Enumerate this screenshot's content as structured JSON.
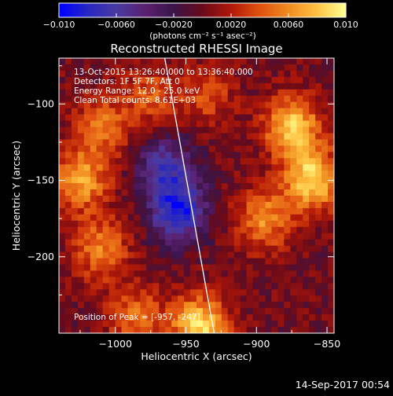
{
  "chart_data": {
    "type": "heatmap",
    "title": "Reconstructed RHESSI Image",
    "xlabel": "Heliocentric X (arcsec)",
    "ylabel": "Heliocentric Y (arcsec)",
    "xlim": [
      -1040,
      -845
    ],
    "ylim": [
      -250,
      -70
    ],
    "x_ticks": [
      -1000,
      -950,
      -900,
      -850
    ],
    "x_tick_labels": [
      "−1000",
      "−950",
      "−900",
      "−850"
    ],
    "y_ticks": [
      -100,
      -150,
      -200
    ],
    "y_tick_labels": [
      "−100",
      "−150",
      "−200"
    ],
    "colorbar": {
      "range": [
        -0.01,
        0.01
      ],
      "ticks": [
        -0.01,
        -0.006,
        -0.002,
        0.002,
        0.006,
        0.01
      ],
      "tick_labels": [
        "−0.010",
        "−0.0060",
        "−0.0020",
        "0.0020",
        "0.0060",
        "0.010"
      ],
      "unit_label": "(photons cm⁻² s⁻¹ asec⁻²)"
    },
    "colors": [
      "#0000ff",
      "#2828c0",
      "#4a3aa0",
      "#5a2070",
      "#3a1448",
      "#6a0a1a",
      "#b01808",
      "#e05010",
      "#f08a20",
      "#ffc040",
      "#ffff90"
    ],
    "sources": [
      {
        "x": -875,
        "y": -115,
        "amp": 0.0085
      },
      {
        "x": -860,
        "y": -150,
        "amp": 0.009
      },
      {
        "x": -895,
        "y": -175,
        "amp": 0.006
      },
      {
        "x": -1025,
        "y": -150,
        "amp": 0.007
      },
      {
        "x": -1010,
        "y": -115,
        "amp": 0.005
      },
      {
        "x": -1010,
        "y": -195,
        "amp": 0.0055
      },
      {
        "x": -940,
        "y": -245,
        "amp": 0.009
      },
      {
        "x": -985,
        "y": -240,
        "amp": 0.005
      },
      {
        "x": -975,
        "y": -95,
        "amp": 0.004
      },
      {
        "x": -935,
        "y": -95,
        "amp": 0.0035
      },
      {
        "x": -955,
        "y": -170,
        "amp": -0.009
      },
      {
        "x": -965,
        "y": -140,
        "amp": -0.006
      }
    ],
    "limb_line": [
      [
        -965,
        -70
      ],
      [
        -930,
        -250
      ]
    ],
    "info_lines": [
      "13-Oct-2015 13:26:40.000 to 13:36:40.000",
      "Detectors: 1F 5F 7F, Att 0",
      "Energy Range: 12.0 - 25.0 keV",
      "Clean     Total counts: 8.61E+03"
    ],
    "peak_label": "Position of Peak = [-957, -247]"
  },
  "footer": {
    "timestamp": "14-Sep-2017 00:54"
  }
}
